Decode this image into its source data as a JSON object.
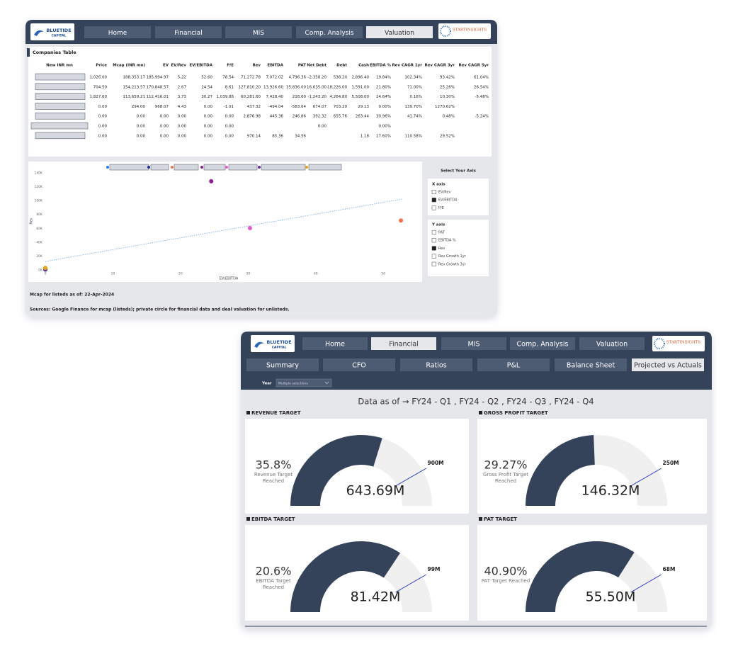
{
  "logo": {
    "name": "BLUETIDE",
    "sub": "CAPITAL"
  },
  "partner_logo": "STARTINSIGHTS",
  "nav": [
    "Home",
    "Financial",
    "MIS",
    "Comp. Analysis",
    "Valuation"
  ],
  "valuation_window": {
    "active_nav": 4,
    "table": {
      "title": "Companies Table",
      "columns": [
        "New INR mn",
        "Price",
        "Mcap (INR mn)",
        "EV",
        "EV/Rev",
        "EV/EBITDA",
        "P/E",
        "Rev",
        "EBITDA",
        "PAT",
        "Net Debt",
        "Debt",
        "Cash",
        "EBITDA %",
        "Rev CAGR 1yr",
        "Rev CAGR 3yr",
        "Rev CAGR 5yr"
      ],
      "rows": [
        [
          "1,026.00",
          "188,353.17",
          "185,994.97",
          "5.22",
          "52.60",
          "78.54",
          "71,272.78",
          "7,072.02",
          "4,796.36",
          "-2,358.20",
          "538.20",
          "2,896.40",
          "19.84%",
          "102.34%",
          "93.42%",
          "61.04%"
        ],
        [
          "704.50",
          "154,213.57",
          "170,848.57",
          "2.67",
          "24.54",
          "8.61",
          "127,810.20",
          "13,926.60",
          "35,836.00",
          "16,635.00",
          "18,226.00",
          "1,591.00",
          "21.80%",
          "71.00%",
          "25.26%",
          "26.54%"
        ],
        [
          "1,827.60",
          "113,659.21",
          "112,416.01",
          "3.73",
          "30.27",
          "1,039.88",
          "60,281.60",
          "7,428.40",
          "218.60",
          "-1,243.20",
          "4,264.80",
          "5,508.00",
          "24.64%",
          "0.16%",
          "10.30%",
          "-5.48%"
        ],
        [
          "0.00",
          "294.00",
          "968.07",
          "4.43",
          "0.00",
          "-1.01",
          "437.32",
          "-494.04",
          "-583.64",
          "674.07",
          "703.20",
          "29.13",
          "0.00%",
          "139.70%",
          "1270.62%",
          null
        ],
        [
          "0.00",
          "0.00",
          "0.00",
          "0.00",
          "0.00",
          "0.00",
          "2,876.98",
          "445.36",
          "246.86",
          "392.32",
          "655.76",
          "263.44",
          "30.96%",
          "41.74%",
          "0.48%",
          "-5.24%"
        ],
        [
          "0.00",
          "0.00",
          "0.00",
          "0.00",
          "0.00",
          "0.00",
          null,
          null,
          null,
          "0.00",
          null,
          null,
          "0.00%",
          null,
          null,
          null
        ],
        [
          "0.00",
          "0.00",
          "0.00",
          "0.00",
          "0.00",
          "0.00",
          "970.14",
          "85.36",
          "34.56",
          null,
          null,
          "1.18",
          "17.60%",
          "110.58%",
          "29.52%",
          null
        ]
      ]
    },
    "scatter": {
      "type": "scatter",
      "x_label": "EV/EBITDA",
      "y_label": "Rev",
      "xlim": [
        0,
        55
      ],
      "xticks": [
        0,
        10,
        20,
        30,
        40,
        50
      ],
      "ylim": [
        0,
        140000
      ],
      "yticks": [
        {
          "value": 0,
          "label": "0K"
        },
        {
          "value": 20000,
          "label": "20K"
        },
        {
          "value": 40000,
          "label": "40K"
        },
        {
          "value": 60000,
          "label": "60K"
        },
        {
          "value": 80000,
          "label": "80K"
        },
        {
          "value": 100000,
          "label": "100K"
        },
        {
          "value": 120000,
          "label": "120K"
        },
        {
          "value": 140000,
          "label": "140K"
        }
      ],
      "points": [
        {
          "color": "#2b7de9",
          "x": 0,
          "y": 437.32
        },
        {
          "color": "#1f2d86",
          "x": 0,
          "y": null
        },
        {
          "color": "#f4744f",
          "x": 52.6,
          "y": 71272.78
        },
        {
          "color": "#8b1f8f",
          "x": 24.54,
          "y": 127810.2
        },
        {
          "color": "#e35dd0",
          "x": 30.27,
          "y": 60281.6
        },
        {
          "color": "#6b2d8a",
          "x": 0,
          "y": 970.14
        },
        {
          "color": "#e8a317",
          "x": 0,
          "y": 2876.98
        }
      ]
    },
    "axis_selector": {
      "title": "Select Your Axis",
      "x_axis": {
        "label": "X axis",
        "options": [
          "EV/Rev",
          "EV/EBITDA",
          "P/E"
        ],
        "selected": 1
      },
      "y_axis": {
        "label": "Y axis",
        "options": [
          "PAT",
          "EBITDA %",
          "Rev",
          "Rev Growth 1yr",
          "Rev Growth 3yr"
        ],
        "selected": 2
      }
    },
    "notes": [
      "Mcap for listeds as of: 22-Apr-2024",
      "Sources: Google Finance for mcap (listeds); private circle for financial data and deal valuation for unlisteds."
    ]
  },
  "financial_window": {
    "active_nav": 1,
    "subnav": [
      "Summary",
      "CFO",
      "Ratios",
      "P&L",
      "Balance Sheet",
      "Projected vs Actuals"
    ],
    "active_subnav": 5,
    "filter": {
      "label": "Year",
      "value": "Multiple selections"
    },
    "heading": "Data as of → FY24 - Q1 , FY24 - Q2 , FY24 - Q3 , FY24 - Q4",
    "gauges": [
      {
        "title": "REVENUE TARGET",
        "percent": "35.8%",
        "caption": "Revenue Target Reached",
        "value": 643.69,
        "value_label": "643.69M",
        "target": 900,
        "target_label": "900M",
        "range": [
          0,
          1080
        ]
      },
      {
        "title": "GROSS PROFIT TARGET",
        "percent": "29.27%",
        "caption": "Gross Profit Target Reached",
        "value": 146.32,
        "value_label": "146.32M",
        "target": 250,
        "target_label": "250M",
        "range": [
          0,
          300
        ]
      },
      {
        "title": "EBITDA TARGET",
        "percent": "20.6%",
        "caption": "EBITDA Target Reached",
        "value": 81.42,
        "value_label": "81.42M",
        "target": 99,
        "target_label": "99M",
        "range": [
          0,
          118.8
        ]
      },
      {
        "title": "PAT TARGET",
        "percent": "40.90%",
        "caption": "PAT Target Reached",
        "value": 55.5,
        "value_label": "55.50M",
        "target": 68,
        "target_label": "68M",
        "range": [
          0,
          81.6
        ]
      }
    ]
  }
}
